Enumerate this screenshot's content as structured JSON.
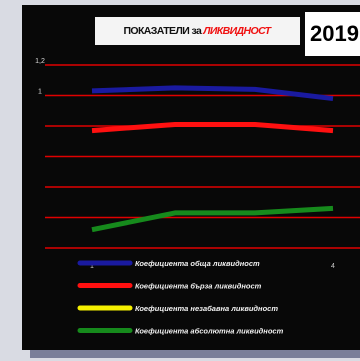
{
  "chart_data": {
    "type": "line",
    "title": "ПОКАЗАТЕЛИ за",
    "title_highlight": "ЛИКВИДНОСТ",
    "year_label": "2019",
    "categories": [
      "1",
      null,
      null,
      "4"
    ],
    "series": [
      {
        "name": "Коефициента обща ликвидност",
        "color": "#1a1aa0",
        "values": [
          1.03,
          1.05,
          1.04,
          0.98
        ]
      },
      {
        "name": "Коефициента бърза ликвидност",
        "color": "#ff1010",
        "values": [
          0.77,
          0.81,
          0.81,
          0.77
        ]
      },
      {
        "name": "Коефициента незабавна ликвидност",
        "color": "#f5f000",
        "values": [
          null,
          null,
          null,
          null
        ]
      },
      {
        "name": "Коефициента абсолютна ликвидност",
        "color": "#168a1c",
        "values": [
          0.12,
          0.23,
          0.23,
          0.26
        ]
      }
    ],
    "ylim": [
      0,
      1.2
    ],
    "yticks": [
      1,
      {
        "value": 1.2,
        "label": "1,2"
      }
    ],
    "ygrid": [
      0,
      0.2,
      0.4,
      0.6,
      0.8,
      1,
      1.2
    ],
    "grid_color": "#e00000"
  }
}
